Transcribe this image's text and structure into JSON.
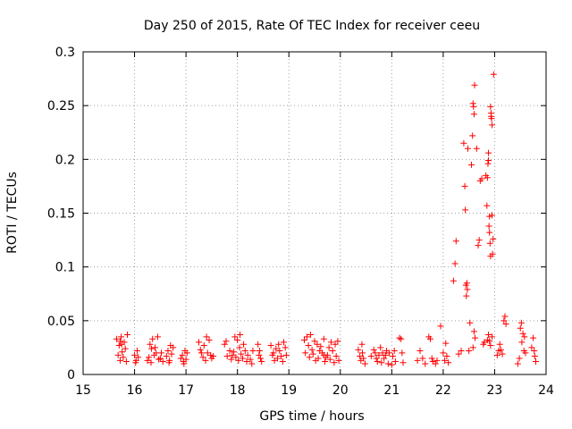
{
  "chart_data": {
    "type": "scatter",
    "title": "Day 250 of 2015, Rate Of TEC Index for receiver ceeu",
    "xlabel": "GPS time / hours",
    "ylabel": "ROTI / TECUs",
    "xlim": [
      15,
      24
    ],
    "ylim": [
      0,
      0.3
    ],
    "grid": true,
    "x_ticks": [
      "15",
      "16",
      "17",
      "18",
      "19",
      "20",
      "21",
      "22",
      "23",
      "24"
    ],
    "y_ticks": [
      "0",
      "0.05",
      "0.1",
      "0.15",
      "0.2",
      "0.25",
      "0.3"
    ],
    "marker": "+",
    "color": "#ff0000",
    "series": [
      {
        "name": "ROTI",
        "points": [
          [
            15.65,
            0.033
          ],
          [
            15.68,
            0.018
          ],
          [
            15.7,
            0.027
          ],
          [
            15.72,
            0.013
          ],
          [
            15.74,
            0.035
          ],
          [
            15.76,
            0.021
          ],
          [
            15.78,
            0.016
          ],
          [
            15.8,
            0.03
          ],
          [
            15.82,
            0.024
          ],
          [
            15.84,
            0.012
          ],
          [
            15.86,
            0.037
          ],
          [
            15.72,
            0.031
          ],
          [
            15.75,
            0.028
          ],
          [
            16.0,
            0.018
          ],
          [
            16.03,
            0.013
          ],
          [
            16.05,
            0.022
          ],
          [
            16.07,
            0.016
          ],
          [
            16.02,
            0.011
          ],
          [
            16.25,
            0.013
          ],
          [
            16.28,
            0.016
          ],
          [
            16.3,
            0.028
          ],
          [
            16.32,
            0.011
          ],
          [
            16.35,
            0.033
          ],
          [
            16.38,
            0.018
          ],
          [
            16.4,
            0.025
          ],
          [
            16.42,
            0.02
          ],
          [
            16.45,
            0.035
          ],
          [
            16.47,
            0.014
          ],
          [
            16.5,
            0.015
          ],
          [
            16.52,
            0.02
          ],
          [
            16.55,
            0.012
          ],
          [
            16.33,
            0.024
          ],
          [
            16.62,
            0.017
          ],
          [
            16.65,
            0.022
          ],
          [
            16.68,
            0.013
          ],
          [
            16.7,
            0.027
          ],
          [
            16.72,
            0.019
          ],
          [
            16.75,
            0.025
          ],
          [
            16.67,
            0.011
          ],
          [
            16.9,
            0.015
          ],
          [
            16.93,
            0.018
          ],
          [
            16.95,
            0.012
          ],
          [
            16.98,
            0.022
          ],
          [
            17.0,
            0.014
          ],
          [
            17.02,
            0.02
          ],
          [
            16.96,
            0.01
          ],
          [
            17.25,
            0.03
          ],
          [
            17.28,
            0.023
          ],
          [
            17.3,
            0.02
          ],
          [
            17.33,
            0.016
          ],
          [
            17.35,
            0.027
          ],
          [
            17.38,
            0.013
          ],
          [
            17.4,
            0.035
          ],
          [
            17.42,
            0.02
          ],
          [
            17.45,
            0.032
          ],
          [
            17.48,
            0.018
          ],
          [
            17.5,
            0.015
          ],
          [
            17.53,
            0.017
          ],
          [
            17.75,
            0.028
          ],
          [
            17.78,
            0.031
          ],
          [
            17.8,
            0.017
          ],
          [
            17.85,
            0.022
          ],
          [
            17.88,
            0.014
          ],
          [
            17.9,
            0.018
          ],
          [
            17.93,
            0.021
          ],
          [
            17.95,
            0.035
          ],
          [
            17.97,
            0.016
          ],
          [
            18.0,
            0.032
          ],
          [
            18.02,
            0.013
          ],
          [
            18.04,
            0.025
          ],
          [
            18.05,
            0.037
          ],
          [
            18.07,
            0.019
          ],
          [
            18.1,
            0.015
          ],
          [
            18.12,
            0.028
          ],
          [
            18.15,
            0.022
          ],
          [
            18.18,
            0.012
          ],
          [
            18.2,
            0.018
          ],
          [
            18.25,
            0.014
          ],
          [
            18.28,
            0.01
          ],
          [
            18.3,
            0.022
          ],
          [
            18.4,
            0.028
          ],
          [
            18.42,
            0.018
          ],
          [
            18.45,
            0.015
          ],
          [
            18.47,
            0.012
          ],
          [
            18.43,
            0.022
          ],
          [
            18.65,
            0.027
          ],
          [
            18.68,
            0.018
          ],
          [
            18.7,
            0.02
          ],
          [
            18.72,
            0.013
          ],
          [
            18.75,
            0.024
          ],
          [
            18.78,
            0.015
          ],
          [
            18.8,
            0.028
          ],
          [
            18.82,
            0.022
          ],
          [
            18.85,
            0.017
          ],
          [
            18.88,
            0.012
          ],
          [
            18.9,
            0.03
          ],
          [
            18.93,
            0.025
          ],
          [
            18.95,
            0.018
          ],
          [
            19.3,
            0.032
          ],
          [
            19.32,
            0.02
          ],
          [
            19.35,
            0.035
          ],
          [
            19.38,
            0.027
          ],
          [
            19.4,
            0.016
          ],
          [
            19.42,
            0.037
          ],
          [
            19.45,
            0.023
          ],
          [
            19.47,
            0.019
          ],
          [
            19.5,
            0.031
          ],
          [
            19.52,
            0.013
          ],
          [
            19.55,
            0.028
          ],
          [
            19.57,
            0.015
          ],
          [
            19.6,
            0.022
          ],
          [
            19.62,
            0.026
          ],
          [
            19.65,
            0.02
          ],
          [
            19.68,
            0.033
          ],
          [
            19.7,
            0.012
          ],
          [
            19.72,
            0.016
          ],
          [
            19.75,
            0.018
          ],
          [
            19.78,
            0.025
          ],
          [
            19.8,
            0.014
          ],
          [
            19.82,
            0.03
          ],
          [
            19.85,
            0.022
          ],
          [
            19.88,
            0.011
          ],
          [
            19.9,
            0.028
          ],
          [
            19.92,
            0.017
          ],
          [
            19.95,
            0.031
          ],
          [
            19.97,
            0.013
          ],
          [
            19.68,
            0.018
          ],
          [
            20.35,
            0.023
          ],
          [
            20.38,
            0.017
          ],
          [
            20.4,
            0.013
          ],
          [
            20.42,
            0.028
          ],
          [
            20.45,
            0.015
          ],
          [
            20.48,
            0.01
          ],
          [
            20.43,
            0.02
          ],
          [
            20.6,
            0.017
          ],
          [
            20.65,
            0.023
          ],
          [
            20.68,
            0.02
          ],
          [
            20.7,
            0.015
          ],
          [
            20.72,
            0.012
          ],
          [
            20.75,
            0.018
          ],
          [
            20.78,
            0.025
          ],
          [
            20.8,
            0.011
          ],
          [
            20.82,
            0.02
          ],
          [
            20.85,
            0.015
          ],
          [
            20.88,
            0.018
          ],
          [
            20.9,
            0.022
          ],
          [
            20.93,
            0.01
          ],
          [
            20.95,
            0.02
          ],
          [
            21.0,
            0.009
          ],
          [
            21.02,
            0.017
          ],
          [
            21.05,
            0.022
          ],
          [
            21.07,
            0.012
          ],
          [
            21.15,
            0.034
          ],
          [
            21.18,
            0.033
          ],
          [
            21.2,
            0.02
          ],
          [
            21.22,
            0.011
          ],
          [
            21.5,
            0.013
          ],
          [
            21.55,
            0.022
          ],
          [
            21.6,
            0.015
          ],
          [
            21.65,
            0.01
          ],
          [
            21.72,
            0.035
          ],
          [
            21.75,
            0.033
          ],
          [
            21.78,
            0.015
          ],
          [
            21.8,
            0.012
          ],
          [
            21.85,
            0.01
          ],
          [
            21.88,
            0.013
          ],
          [
            21.95,
            0.045
          ],
          [
            22.0,
            0.02
          ],
          [
            22.03,
            0.013
          ],
          [
            22.05,
            0.029
          ],
          [
            22.07,
            0.017
          ],
          [
            22.1,
            0.011
          ],
          [
            22.2,
            0.087
          ],
          [
            22.23,
            0.103
          ],
          [
            22.25,
            0.124
          ],
          [
            22.3,
            0.019
          ],
          [
            22.35,
            0.022
          ],
          [
            22.4,
            0.215
          ],
          [
            22.42,
            0.175
          ],
          [
            22.43,
            0.153
          ],
          [
            22.44,
            0.083
          ],
          [
            22.45,
            0.073
          ],
          [
            22.46,
            0.085
          ],
          [
            22.47,
            0.079
          ],
          [
            22.48,
            0.21
          ],
          [
            22.5,
            0.022
          ],
          [
            22.52,
            0.048
          ],
          [
            22.55,
            0.195
          ],
          [
            22.57,
            0.222
          ],
          [
            22.58,
            0.252
          ],
          [
            22.59,
            0.249
          ],
          [
            22.6,
            0.242
          ],
          [
            22.61,
            0.269
          ],
          [
            22.58,
            0.025
          ],
          [
            22.6,
            0.04
          ],
          [
            22.62,
            0.034
          ],
          [
            22.65,
            0.21
          ],
          [
            22.68,
            0.12
          ],
          [
            22.7,
            0.125
          ],
          [
            22.72,
            0.18
          ],
          [
            22.75,
            0.182
          ],
          [
            22.78,
            0.028
          ],
          [
            22.8,
            0.03
          ],
          [
            22.83,
            0.185
          ],
          [
            22.85,
            0.157
          ],
          [
            22.86,
            0.183
          ],
          [
            22.87,
            0.196
          ],
          [
            22.88,
            0.206
          ],
          [
            22.88,
            0.199
          ],
          [
            22.89,
            0.138
          ],
          [
            22.9,
            0.147
          ],
          [
            22.9,
            0.132
          ],
          [
            22.91,
            0.122
          ],
          [
            22.92,
            0.11
          ],
          [
            22.93,
            0.243
          ],
          [
            22.94,
            0.238
          ],
          [
            22.95,
            0.148
          ],
          [
            22.96,
            0.112
          ],
          [
            22.97,
            0.126
          ],
          [
            22.98,
            0.279
          ],
          [
            22.95,
            0.232
          ],
          [
            22.93,
            0.24
          ],
          [
            22.92,
            0.249
          ],
          [
            22.86,
            0.032
          ],
          [
            22.88,
            0.037
          ],
          [
            22.9,
            0.031
          ],
          [
            22.92,
            0.027
          ],
          [
            22.95,
            0.035
          ],
          [
            23.05,
            0.018
          ],
          [
            23.08,
            0.022
          ],
          [
            23.1,
            0.028
          ],
          [
            23.12,
            0.023
          ],
          [
            23.15,
            0.019
          ],
          [
            23.18,
            0.05
          ],
          [
            23.2,
            0.054
          ],
          [
            23.22,
            0.047
          ],
          [
            23.45,
            0.01
          ],
          [
            23.48,
            0.015
          ],
          [
            23.5,
            0.043
          ],
          [
            23.52,
            0.048
          ],
          [
            23.53,
            0.03
          ],
          [
            23.55,
            0.038
          ],
          [
            23.57,
            0.022
          ],
          [
            23.58,
            0.035
          ],
          [
            23.6,
            0.02
          ],
          [
            23.72,
            0.025
          ],
          [
            23.75,
            0.034
          ],
          [
            23.77,
            0.022
          ],
          [
            23.78,
            0.017
          ],
          [
            23.8,
            0.012
          ]
        ]
      }
    ]
  }
}
